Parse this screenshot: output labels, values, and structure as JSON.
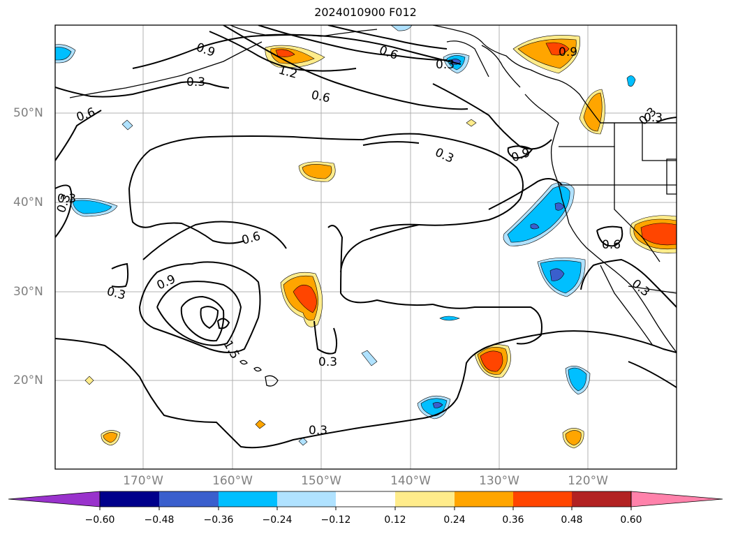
{
  "title": "2024010900 F012",
  "lat_labels": [
    "50°N",
    "40°N",
    "30°N",
    "20°N"
  ],
  "lon_labels": [
    "170°W",
    "160°W",
    "150°W",
    "140°W",
    "130°W",
    "120°W"
  ],
  "contour_labels": [
    "0.9",
    "0.6",
    "1.2",
    "0.3",
    "0.6",
    "0.3",
    "0.9",
    "0.6",
    "0.3",
    "0.6",
    "0.3",
    "0.9",
    "0.3",
    "0.9",
    "0.6",
    "0.3",
    "0.3",
    "0.3",
    "0.3",
    "1.5",
    "0.3",
    "0.3"
  ],
  "colorbar": {
    "ticks": [
      "−0.60",
      "−0.48",
      "−0.36",
      "−0.24",
      "−0.12",
      "0.12",
      "0.24",
      "0.36",
      "0.48",
      "0.60"
    ],
    "colors": [
      "#9932cc",
      "#00008b",
      "#3a5fcd",
      "#00bfff",
      "#b0e2ff",
      "#ffffff",
      "#ffec8b",
      "#ffa500",
      "#ff4500",
      "#b22222",
      "#ff82ab"
    ]
  },
  "fill_colors": {
    "orange": "#ffa500",
    "red_orange": "#ff4500",
    "yellow": "#ffec8b",
    "light_blue": "#b0e2ff",
    "sky_blue": "#00bfff",
    "royal_blue": "#3a5fcd"
  }
}
